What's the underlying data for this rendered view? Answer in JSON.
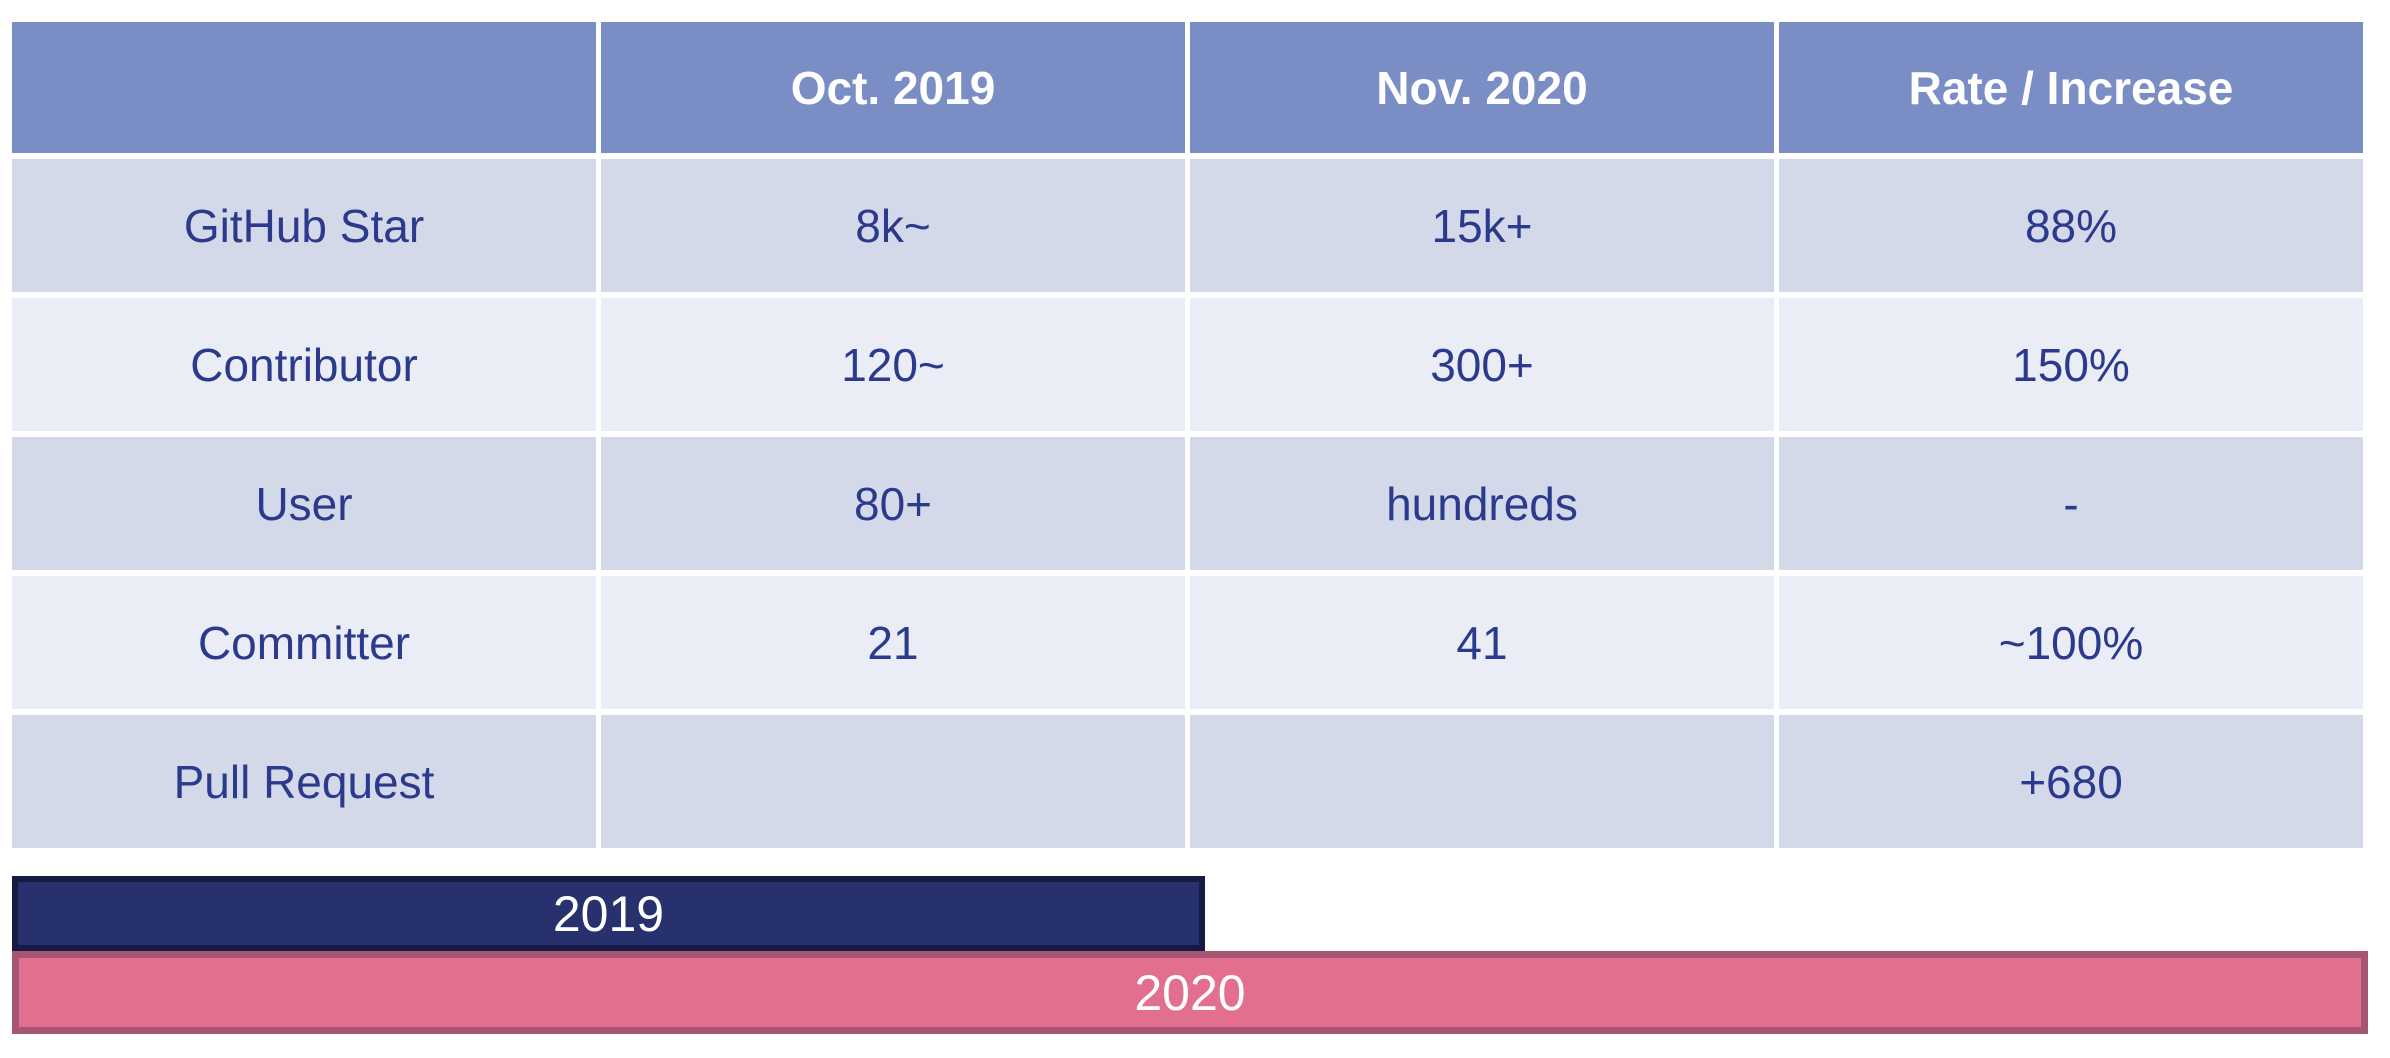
{
  "table": {
    "headers": [
      "",
      "Oct. 2019",
      "Nov. 2020",
      "Rate / Increase"
    ],
    "rows": [
      [
        "GitHub Star",
        "8k~",
        "15k+",
        "88%"
      ],
      [
        "Contributor",
        "120~",
        "300+",
        "150%"
      ],
      [
        "User",
        "80+",
        "hundreds",
        "-"
      ],
      [
        "Committer",
        "21",
        "41",
        "~100%"
      ],
      [
        "Pull Request",
        "",
        "",
        "+680"
      ]
    ]
  },
  "timeline": {
    "bars": [
      {
        "label": "2019",
        "fill": "#26316e",
        "border": "#151b42"
      },
      {
        "label": "2020",
        "fill": "#e26f8e",
        "border": "#a65672"
      }
    ]
  },
  "colors": {
    "header_bg": "#7a8dc5",
    "header_text": "#ffffff",
    "row_dark": "#d4d9ea",
    "row_light": "#eaedf6",
    "cell_text": "#2b3a8c",
    "bar_2019_fill": "#26316e",
    "bar_2019_border": "#151b42",
    "bar_2020_fill": "#e26f8e",
    "bar_2020_border": "#a65672"
  },
  "chart_data": {
    "type": "table",
    "title": "",
    "columns": [
      "",
      "Oct. 2019",
      "Nov. 2020",
      "Rate / Increase"
    ],
    "rows": [
      {
        "metric": "GitHub Star",
        "oct_2019": "8k~",
        "nov_2020": "15k+",
        "rate_increase": "88%"
      },
      {
        "metric": "Contributor",
        "oct_2019": "120~",
        "nov_2020": "300+",
        "rate_increase": "150%"
      },
      {
        "metric": "User",
        "oct_2019": "80+",
        "nov_2020": "hundreds",
        "rate_increase": "-"
      },
      {
        "metric": "Committer",
        "oct_2019": "21",
        "nov_2020": "41",
        "rate_increase": "~100%"
      },
      {
        "metric": "Pull Request",
        "oct_2019": "",
        "nov_2020": "",
        "rate_increase": "+680"
      }
    ],
    "annotations": [
      {
        "label": "2019",
        "shape": "bar",
        "relative_length": 0.5,
        "color": "#26316e"
      },
      {
        "label": "2020",
        "shape": "bar",
        "relative_length": 1.0,
        "color": "#e26f8e"
      }
    ],
    "legend_position": "none",
    "grid": false
  }
}
